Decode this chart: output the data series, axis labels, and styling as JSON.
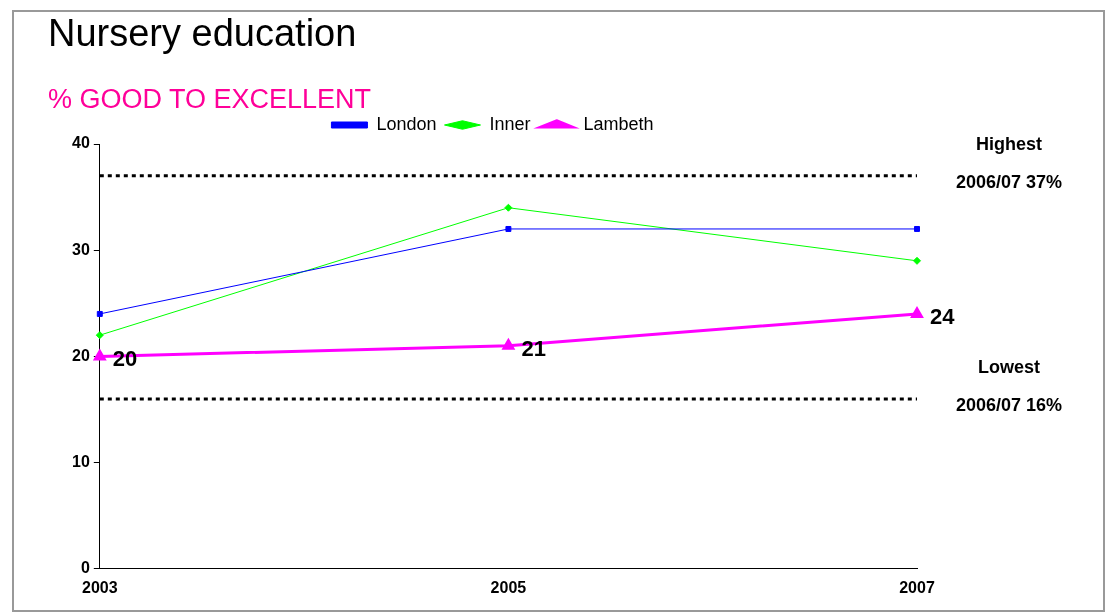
{
  "chart_data": {
    "type": "line",
    "title": "Nursery education",
    "subtitle": "% GOOD TO EXCELLENT",
    "categories": [
      "2003",
      "2005",
      "2007"
    ],
    "series": [
      {
        "name": "London",
        "color": "#0000ff",
        "values": [
          24,
          32,
          32
        ],
        "marker": "square"
      },
      {
        "name": "Inner",
        "color": "#00ff00",
        "values": [
          22,
          34,
          29
        ],
        "marker": "diamond"
      },
      {
        "name": "Lambeth",
        "color": "#ff00ff",
        "values": [
          20,
          21,
          24
        ],
        "marker": "triangle",
        "value_labels": [
          "20",
          "21",
          "24"
        ]
      }
    ],
    "ylim": [
      0,
      40
    ],
    "yticks": [
      0,
      10,
      20,
      30,
      40
    ],
    "grid": false,
    "legend": "top",
    "ref_lines": [
      {
        "axis": "y",
        "value": 37,
        "label": "Highest\n2006/07 37%",
        "color": "#000000",
        "line_style": "dotted"
      },
      {
        "axis": "y",
        "value": 16,
        "label": "Lowest\n2006/07 16%",
        "color": "#000000",
        "line_style": "dotted"
      }
    ]
  }
}
